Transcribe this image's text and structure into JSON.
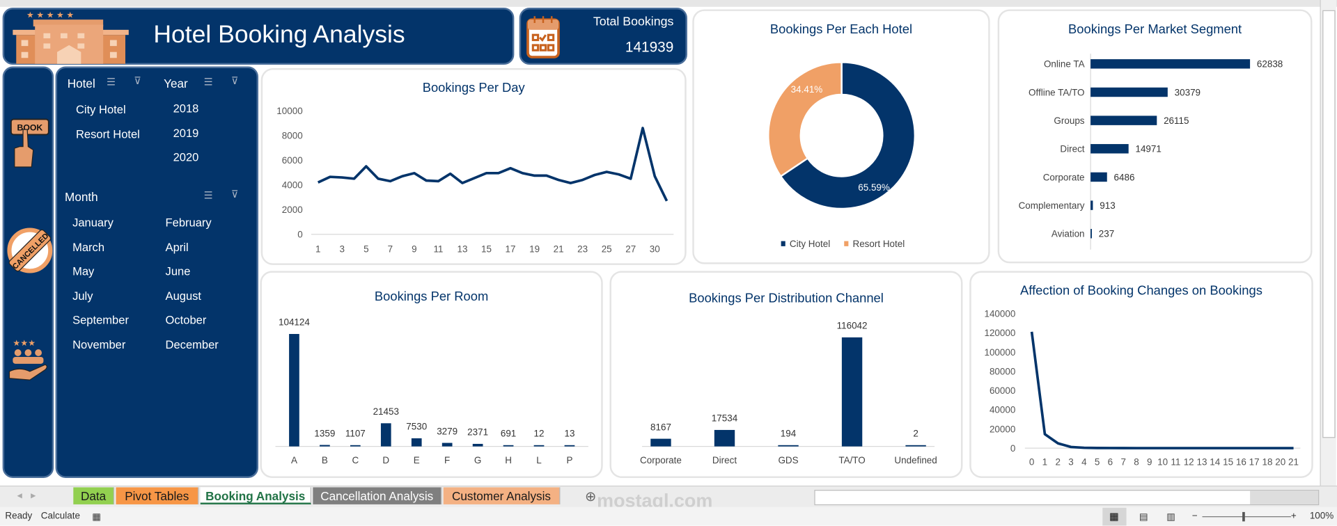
{
  "header": {
    "title": "Hotel Booking Analysis",
    "kpi_label": "Total Bookings",
    "kpi_value": "141939"
  },
  "sidebar_icons": [
    "book-icon",
    "cancelled-icon",
    "customer-rating-icon"
  ],
  "slicers": {
    "hotel": {
      "label": "Hotel",
      "items": [
        "City Hotel",
        "Resort Hotel"
      ]
    },
    "year": {
      "label": "Year",
      "items": [
        "2018",
        "2019",
        "2020"
      ]
    },
    "month": {
      "label": "Month",
      "items": [
        "January",
        "February",
        "March",
        "April",
        "May",
        "June",
        "July",
        "August",
        "September",
        "October",
        "November",
        "December"
      ]
    }
  },
  "colors": {
    "navy": "#03346a",
    "orange": "#f0a066",
    "background": "#ffffff"
  },
  "chart_data": [
    {
      "id": "per_day",
      "type": "line",
      "title": "Bookings Per Day",
      "categories": [
        "1",
        "2",
        "3",
        "4",
        "5",
        "6",
        "7",
        "8",
        "9",
        "10",
        "11",
        "12",
        "13",
        "14",
        "15",
        "16",
        "17",
        "18",
        "19",
        "20",
        "21",
        "22",
        "23",
        "24",
        "25",
        "26",
        "27",
        "28",
        "30",
        "31"
      ],
      "x_tick_labels": [
        "1",
        "3",
        "5",
        "7",
        "9",
        "11",
        "13",
        "15",
        "17",
        "19",
        "21",
        "23",
        "25",
        "27",
        "30"
      ],
      "values": [
        4200,
        4650,
        4600,
        4500,
        5500,
        4500,
        4300,
        4700,
        4950,
        4350,
        4300,
        4900,
        4150,
        4550,
        4950,
        4950,
        5350,
        4950,
        4750,
        4750,
        4400,
        4150,
        4400,
        4800,
        5050,
        4850,
        4500,
        8600,
        4700,
        2700
      ],
      "y_ticks": [
        0,
        2000,
        4000,
        6000,
        8000,
        10000
      ],
      "ylim": [
        0,
        10000
      ],
      "grid": false
    },
    {
      "id": "per_hotel",
      "type": "pie",
      "title": "Bookings Per Each Hotel",
      "donut": true,
      "categories": [
        "City Hotel",
        "Resort Hotel"
      ],
      "values": [
        65.59,
        34.41
      ],
      "labels": [
        "65.59%",
        "34.41%"
      ],
      "colors": [
        "#03346a",
        "#f0a066"
      ],
      "legend": "bottom"
    },
    {
      "id": "per_segment",
      "type": "bar",
      "orientation": "horizontal",
      "title": "Bookings Per Market Segment",
      "categories": [
        "Online TA",
        "Offline TA/TO",
        "Groups",
        "Direct",
        "Corporate",
        "Complementary",
        "Aviation"
      ],
      "values": [
        62838,
        30379,
        26115,
        14971,
        6486,
        913,
        237
      ]
    },
    {
      "id": "per_room",
      "type": "bar",
      "title": "Bookings Per Room",
      "categories": [
        "A",
        "B",
        "C",
        "D",
        "E",
        "F",
        "G",
        "H",
        "L",
        "P"
      ],
      "values": [
        104124,
        1359,
        1107,
        21453,
        7530,
        3279,
        2371,
        691,
        12,
        13
      ]
    },
    {
      "id": "per_channel",
      "type": "bar",
      "title": "Bookings Per Distribution Channel",
      "categories": [
        "Corporate",
        "Direct",
        "GDS",
        "TA/TO",
        "Undefined"
      ],
      "values": [
        8167,
        17534,
        194,
        116042,
        2
      ]
    },
    {
      "id": "changes",
      "type": "line",
      "title": "Affection of Booking Changes on Bookings",
      "categories": [
        "0",
        "1",
        "2",
        "3",
        "4",
        "5",
        "6",
        "7",
        "8",
        "9",
        "10",
        "11",
        "12",
        "13",
        "14",
        "15",
        "16",
        "17",
        "18",
        "20",
        "21"
      ],
      "values": [
        121000,
        14500,
        5000,
        1200,
        400,
        150,
        100,
        50,
        40,
        30,
        20,
        15,
        10,
        8,
        6,
        5,
        4,
        3,
        2,
        2,
        1
      ],
      "y_ticks": [
        0,
        20000,
        40000,
        60000,
        80000,
        100000,
        120000,
        140000
      ],
      "ylim": [
        0,
        140000
      ],
      "grid": false
    }
  ],
  "sheet_tabs": [
    {
      "label": "Data",
      "bg": "#92d050",
      "fg": "#1a1a1a"
    },
    {
      "label": "Pivot Tables",
      "bg": "#f79646",
      "fg": "#1a1a1a"
    },
    {
      "label": "Booking Analysis",
      "bg": "#ffffff",
      "fg": "#217346",
      "active": true
    },
    {
      "label": "Cancellation Analysis",
      "bg": "#7f7f7f",
      "fg": "#ffffff"
    },
    {
      "label": "Customer Analysis",
      "bg": "#f4b183",
      "fg": "#1a1a1a"
    }
  ],
  "status": {
    "ready": "Ready",
    "calculate": "Calculate",
    "zoom": "100%"
  },
  "watermark": "mostaql.com"
}
